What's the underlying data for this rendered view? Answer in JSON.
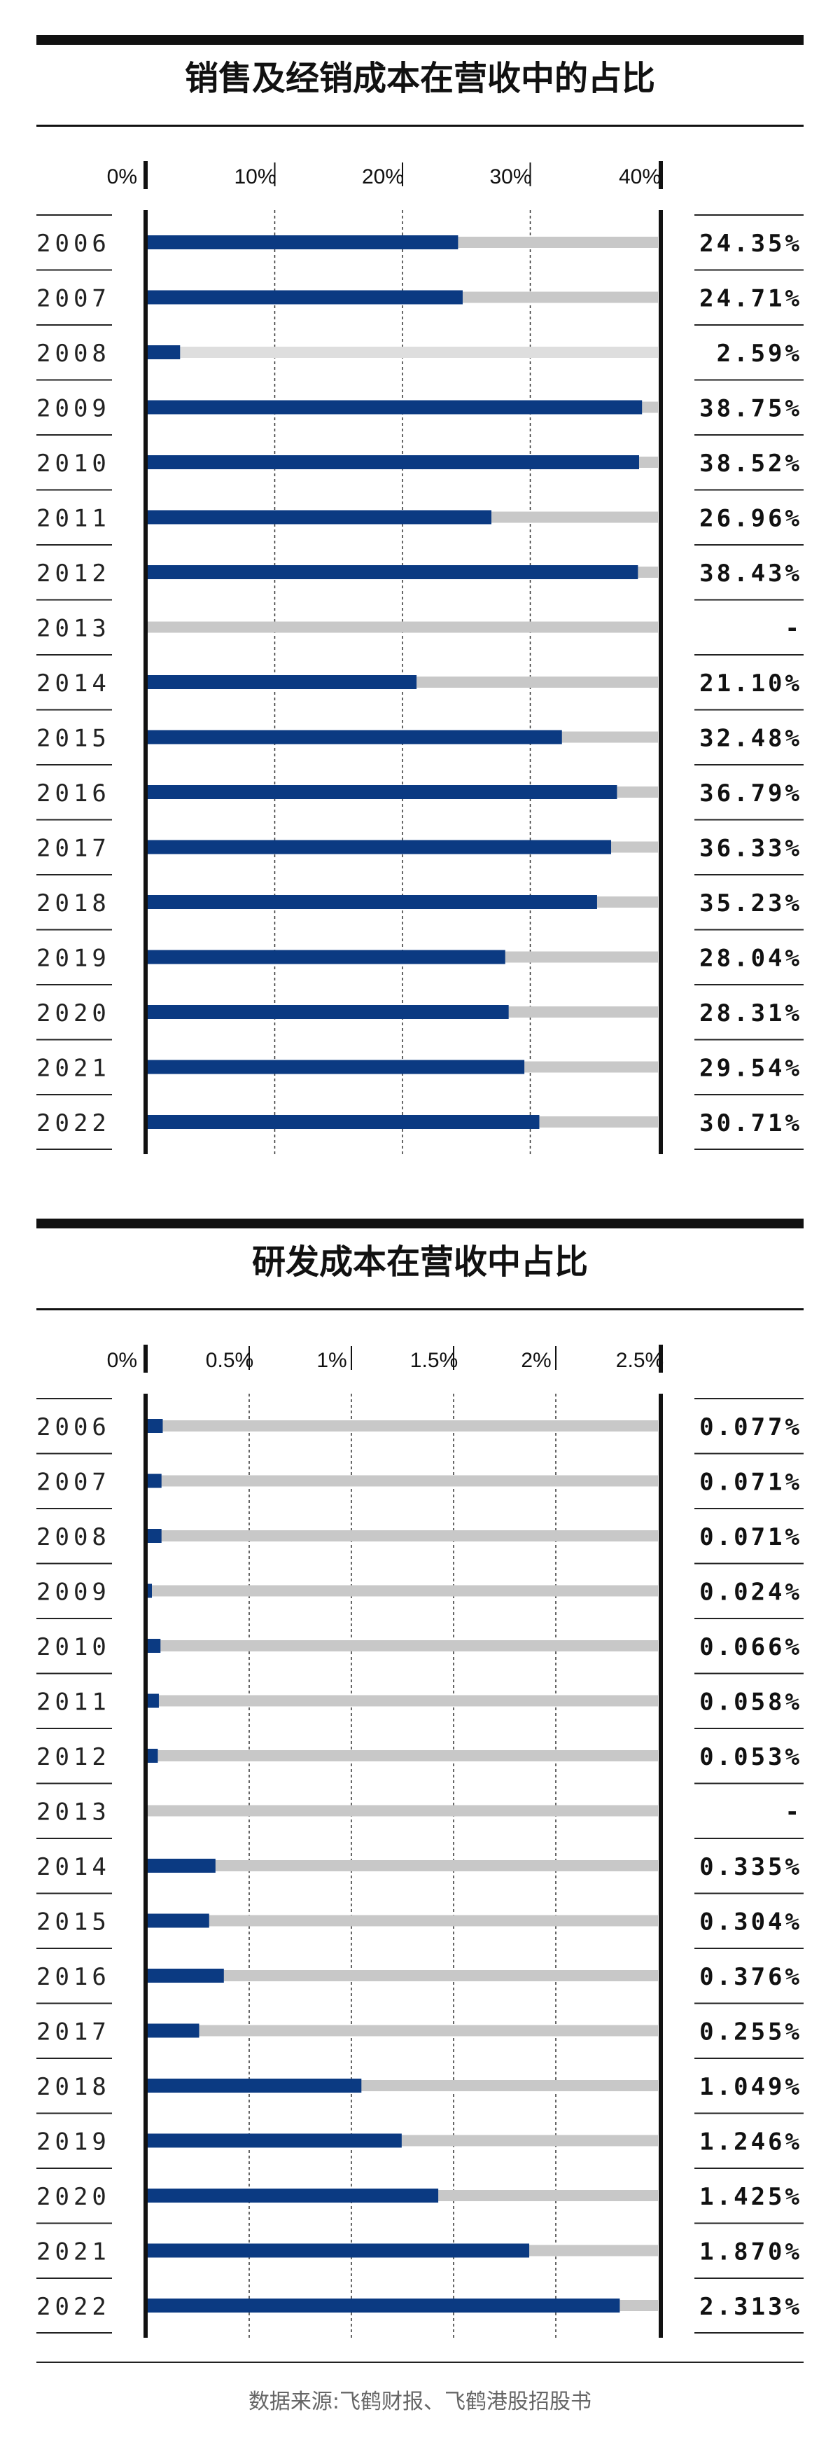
{
  "colors": {
    "bar": "#0b3a82",
    "track": "#c8c8c8",
    "track_light": "#dedede",
    "rule": "#111111"
  },
  "chart_data": [
    {
      "type": "bar",
      "orientation": "horizontal",
      "title": "销售及经销成本在营收中的占比",
      "xlim": [
        0,
        40
      ],
      "ticks": [
        0,
        10,
        20,
        30,
        40
      ],
      "tick_labels": [
        "0%",
        "10%",
        "20%",
        "30%",
        "40%"
      ],
      "grid": true,
      "categories": [
        "2006",
        "2007",
        "2008",
        "2009",
        "2010",
        "2011",
        "2012",
        "2013",
        "2014",
        "2015",
        "2016",
        "2017",
        "2018",
        "2019",
        "2020",
        "2021",
        "2022"
      ],
      "values": [
        24.35,
        24.71,
        2.59,
        38.75,
        38.52,
        26.96,
        38.43,
        null,
        21.1,
        32.48,
        36.79,
        36.33,
        35.23,
        28.04,
        28.31,
        29.54,
        30.71
      ],
      "value_labels": [
        "24.35%",
        "24.71%",
        "2.59%",
        "38.75%",
        "38.52%",
        "26.96%",
        "38.43%",
        "-",
        "21.10%",
        "32.48%",
        "36.79%",
        "36.33%",
        "35.23%",
        "28.04%",
        "28.31%",
        "29.54%",
        "30.71%"
      ]
    },
    {
      "type": "bar",
      "orientation": "horizontal",
      "title": "研发成本在营收中占比",
      "xlim": [
        0,
        2.5
      ],
      "ticks": [
        0,
        0.5,
        1,
        1.5,
        2,
        2.5
      ],
      "tick_labels": [
        "0%",
        "0.5%",
        "1%",
        "1.5%",
        "2%",
        "2.5%"
      ],
      "grid": true,
      "categories": [
        "2006",
        "2007",
        "2008",
        "2009",
        "2010",
        "2011",
        "2012",
        "2013",
        "2014",
        "2015",
        "2016",
        "2017",
        "2018",
        "2019",
        "2020",
        "2021",
        "2022"
      ],
      "values": [
        0.077,
        0.071,
        0.071,
        0.024,
        0.066,
        0.058,
        0.053,
        null,
        0.335,
        0.304,
        0.376,
        0.255,
        1.049,
        1.246,
        1.425,
        1.87,
        2.313
      ],
      "value_labels": [
        "0.077%",
        "0.071%",
        "0.071%",
        "0.024%",
        "0.066%",
        "0.058%",
        "0.053%",
        "-",
        "0.335%",
        "0.304%",
        "0.376%",
        "0.255%",
        "1.049%",
        "1.246%",
        "1.425%",
        "1.870%",
        "2.313%"
      ]
    }
  ],
  "footer": {
    "source": "数据来源:飞鹤财报、飞鹤港股招股书"
  }
}
